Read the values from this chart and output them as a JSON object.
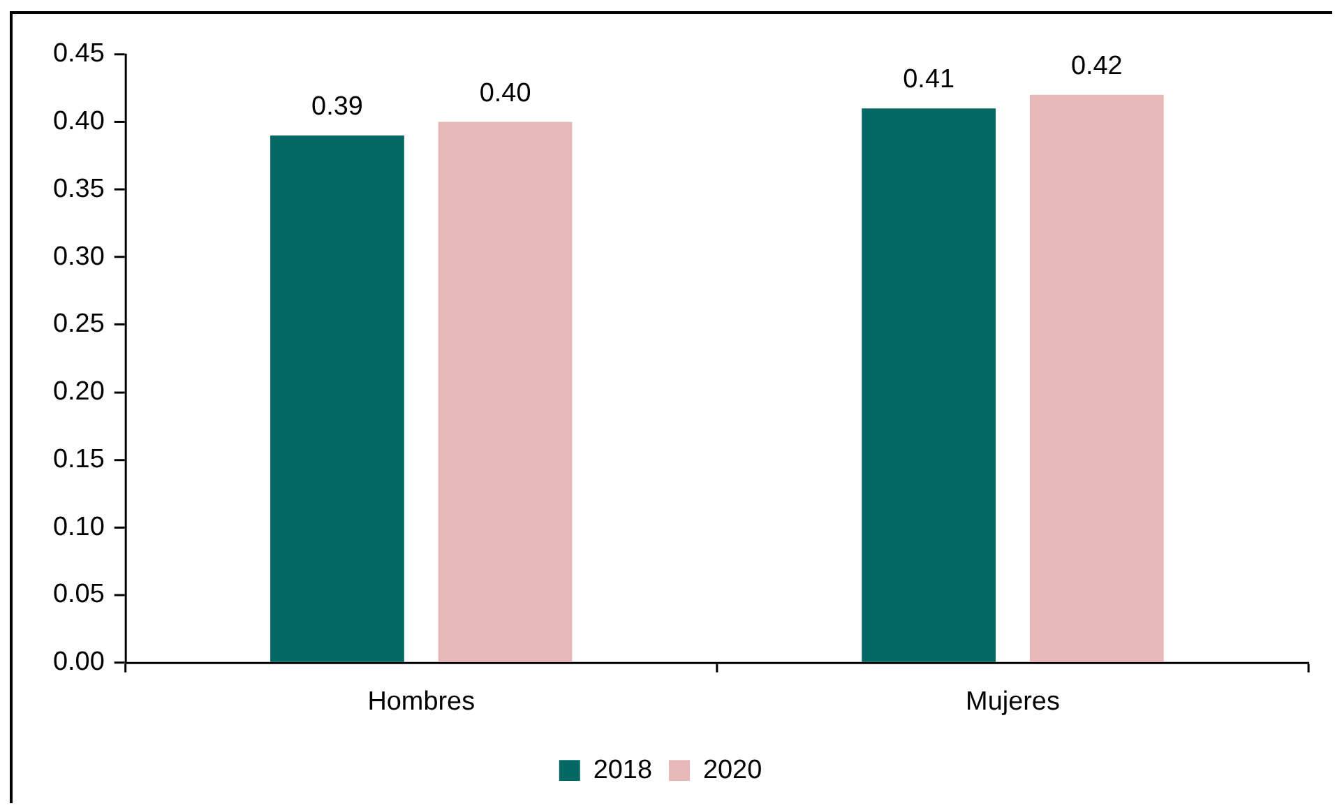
{
  "chart_data": {
    "type": "bar",
    "categories": [
      "Hombres",
      "Mujeres"
    ],
    "series": [
      {
        "name": "2018",
        "color": "#026864",
        "values": [
          0.39,
          0.41
        ],
        "value_labels": [
          "0.39",
          "0.41"
        ]
      },
      {
        "name": "2020",
        "color": "#e6b8b7",
        "values": [
          0.4,
          0.42
        ],
        "value_labels": [
          "0.40",
          "0.42"
        ]
      }
    ],
    "ylim": [
      0,
      0.45
    ],
    "yticks": [
      {
        "value": 0,
        "label": "0.00"
      },
      {
        "value": 0.05,
        "label": "0.05"
      },
      {
        "value": 0.1,
        "label": "0.10"
      },
      {
        "value": 0.15,
        "label": "0.15"
      },
      {
        "value": 0.2,
        "label": "0.20"
      },
      {
        "value": 0.25,
        "label": "0.25"
      },
      {
        "value": 0.3,
        "label": "0.30"
      },
      {
        "value": 0.35,
        "label": "0.35"
      },
      {
        "value": 0.4,
        "label": "0.40"
      },
      {
        "value": 0.45,
        "label": "0.45"
      }
    ],
    "grid": false,
    "legend": "bottom"
  }
}
